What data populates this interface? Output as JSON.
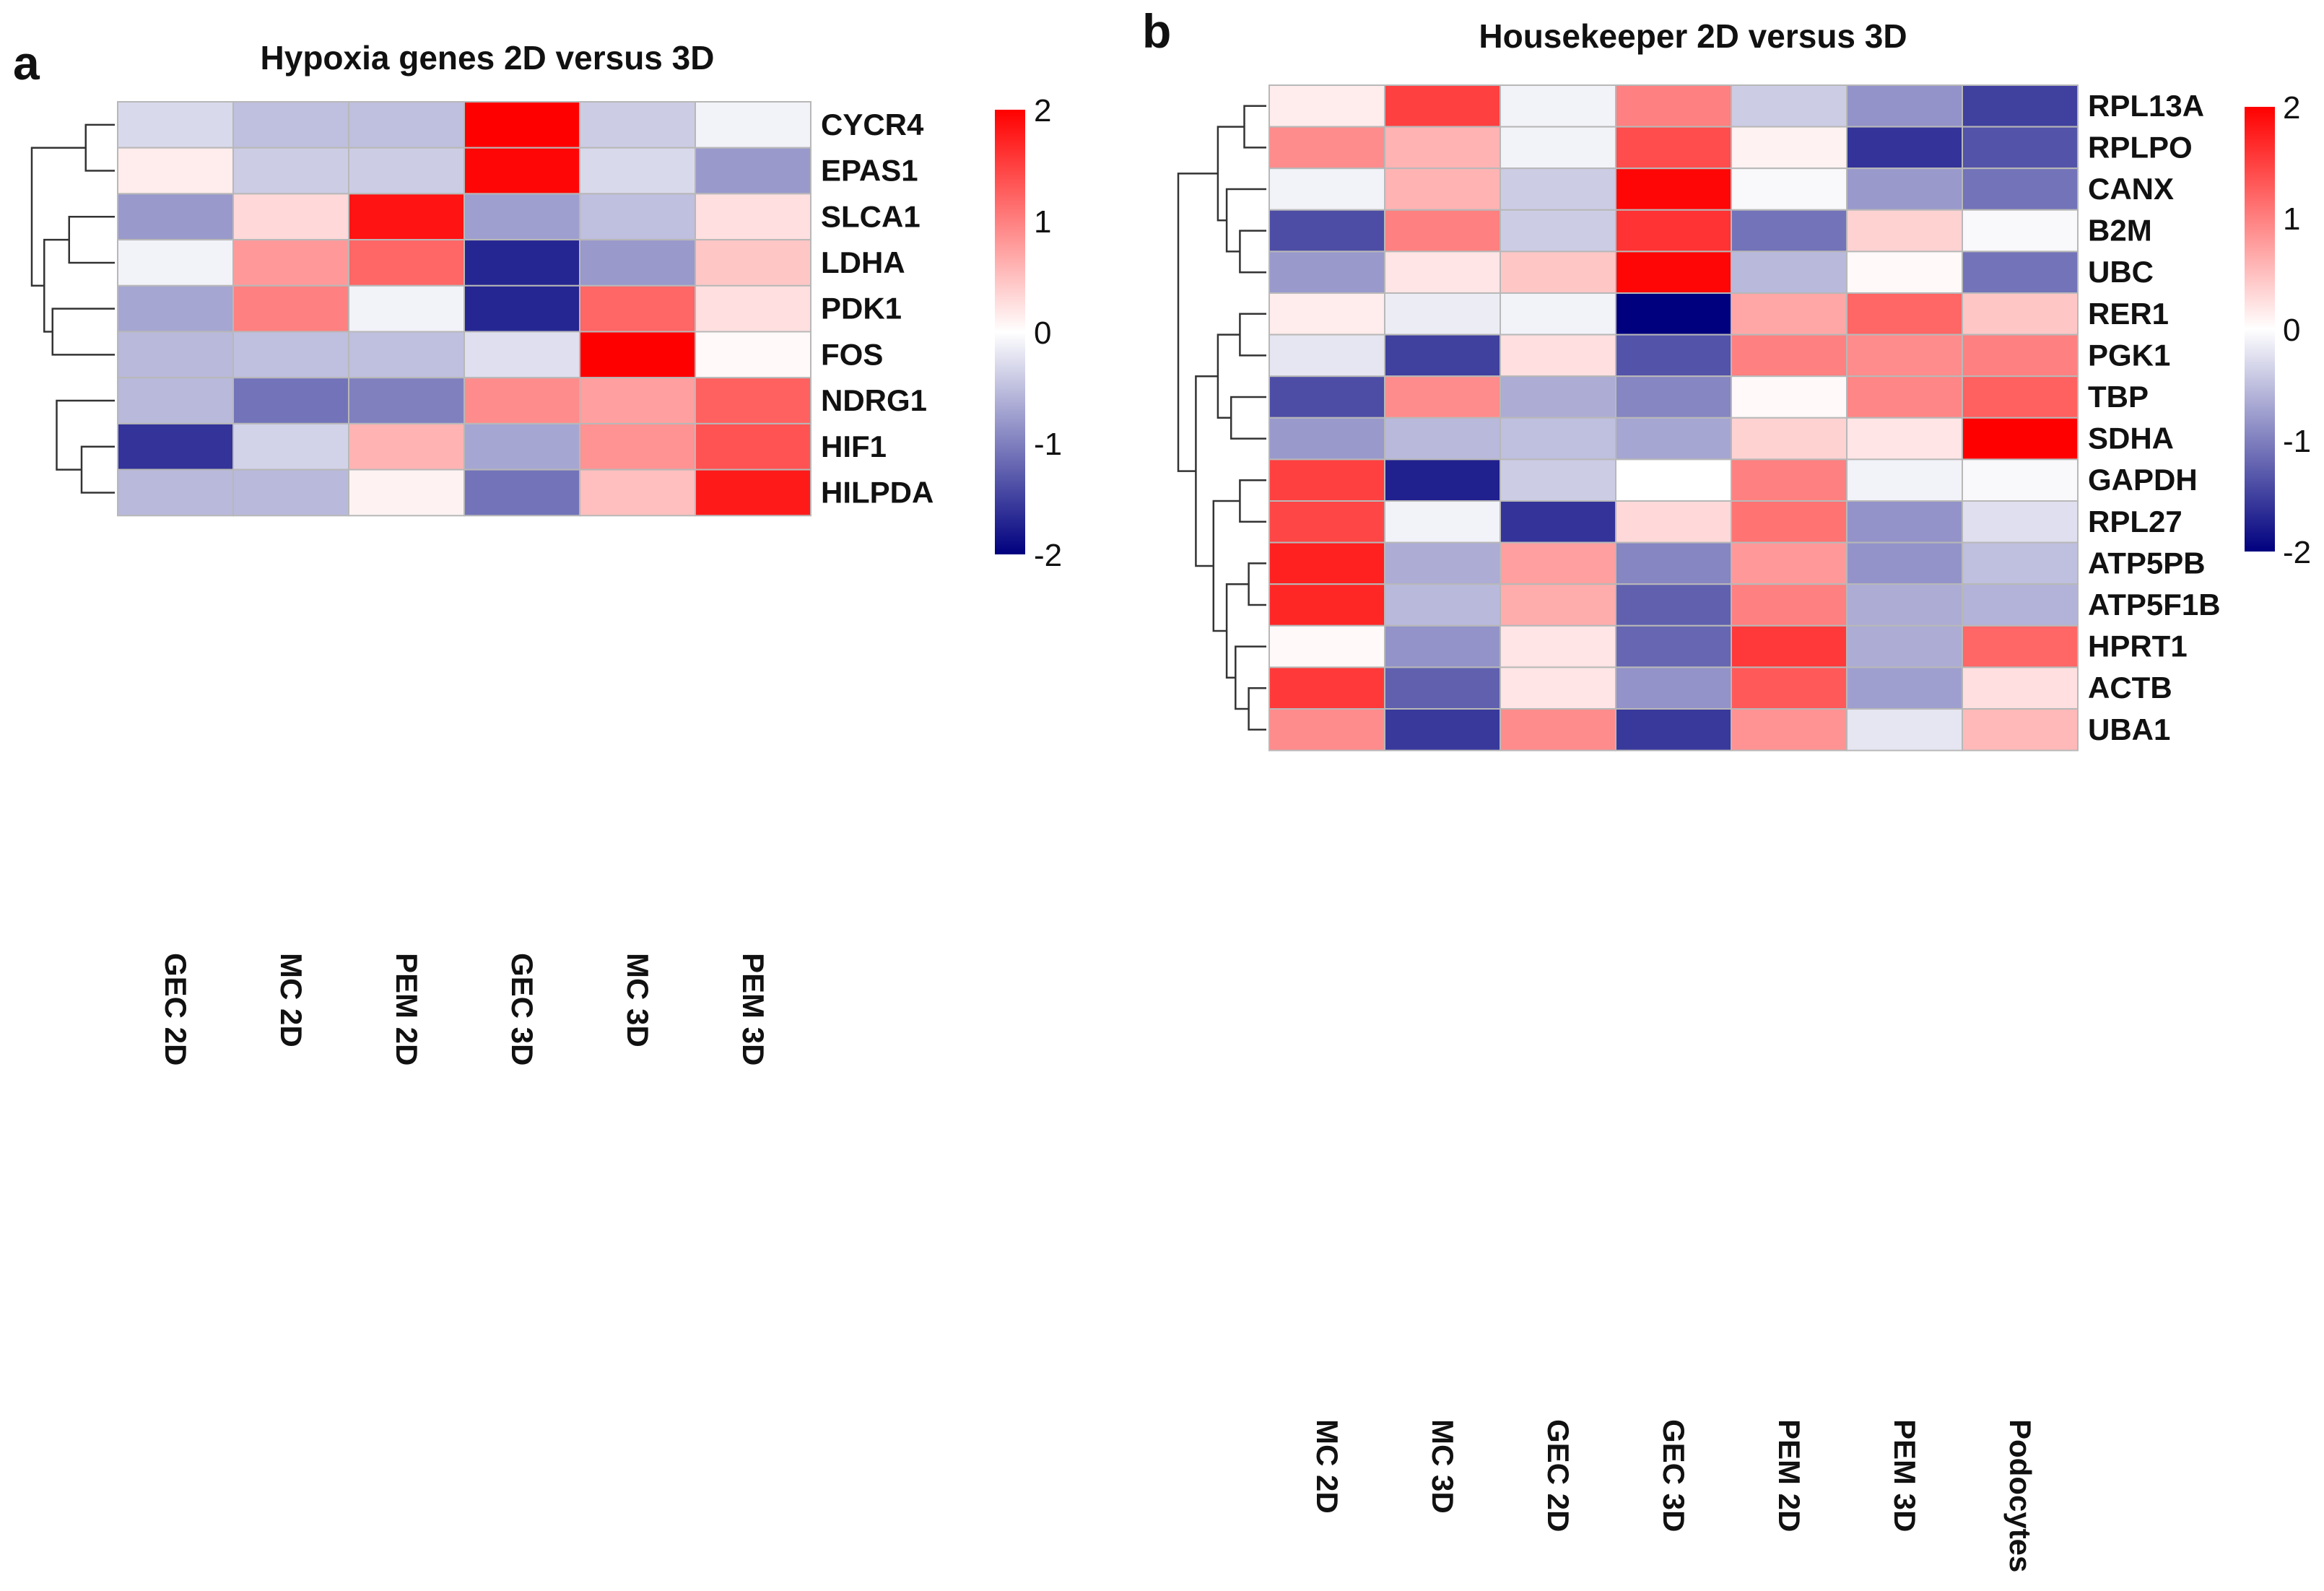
{
  "colors": {
    "low": "#00007f",
    "mid": "#ffffff",
    "high": "#ff0000"
  },
  "chart_data": [
    {
      "type": "heatmap",
      "panel": "a",
      "title": "Hypoxia genes 2D versus 3D",
      "columns": [
        "GEC 2D",
        "MC 2D",
        "PEM 2D",
        "GEC 3D",
        "MC 3D",
        "PEM 3D"
      ],
      "rows": [
        "CYCR4",
        "EPAS1",
        "SLCA1",
        "LDHA",
        "PDK1",
        "FOS",
        "NDRG1",
        "HIF1",
        "HILPDA"
      ],
      "values": [
        [
          -0.3,
          -0.5,
          -0.5,
          2.0,
          -0.4,
          -0.1
        ],
        [
          0.15,
          -0.4,
          -0.4,
          1.95,
          -0.3,
          -0.8
        ],
        [
          -0.8,
          0.3,
          1.85,
          -0.75,
          -0.5,
          0.25
        ],
        [
          -0.1,
          0.8,
          1.2,
          -1.7,
          -0.8,
          0.45
        ],
        [
          -0.7,
          1.0,
          -0.1,
          -1.7,
          1.2,
          0.25
        ],
        [
          -0.55,
          -0.5,
          -0.5,
          -0.25,
          2.0,
          0.05
        ],
        [
          -0.55,
          -1.1,
          -1.0,
          0.9,
          0.75,
          1.25
        ],
        [
          -1.6,
          -0.35,
          0.6,
          -0.7,
          0.85,
          1.35
        ],
        [
          -0.55,
          -0.55,
          0.1,
          -1.1,
          0.5,
          1.8
        ]
      ],
      "legend": {
        "min": -2,
        "max": 2,
        "ticks": [
          "2",
          "1",
          "0",
          "-1",
          "-2"
        ]
      }
    },
    {
      "type": "heatmap",
      "panel": "b",
      "title": "Housekeeper 2D versus 3D",
      "columns": [
        "MC 2D",
        "MC 3D",
        "GEC 2D",
        "GEC 3D",
        "PEM 2D",
        "PEM 3D",
        "Podocytes"
      ],
      "rows": [
        "RPL13A",
        "RPLPO",
        "CANX",
        "B2M",
        "UBC",
        "RER1",
        "PGK1",
        "TBP",
        "SDHA",
        "GAPDH",
        "RPL27",
        "ATP5PB",
        "ATP5F1B",
        "HPRT1",
        "ACTB",
        "UBA1"
      ],
      "values": [
        [
          0.15,
          1.5,
          -0.1,
          1.0,
          -0.4,
          -0.85,
          -1.5
        ],
        [
          0.9,
          0.6,
          -0.1,
          1.4,
          0.1,
          -1.6,
          -1.35
        ],
        [
          -0.1,
          0.6,
          -0.4,
          1.95,
          -0.05,
          -0.8,
          -1.1
        ],
        [
          -1.4,
          1.0,
          -0.4,
          1.6,
          -1.1,
          0.35,
          -0.05
        ],
        [
          -0.8,
          0.2,
          0.45,
          1.95,
          -0.55,
          0.05,
          -1.1
        ],
        [
          0.15,
          -0.15,
          -0.1,
          -2.0,
          0.7,
          1.2,
          0.45
        ],
        [
          -0.2,
          -1.5,
          0.25,
          -1.35,
          1.0,
          0.9,
          1.0
        ],
        [
          -1.4,
          0.9,
          -0.65,
          -0.95,
          0.05,
          0.95,
          1.25
        ],
        [
          -0.8,
          -0.55,
          -0.5,
          -0.7,
          0.35,
          0.2,
          2.0
        ],
        [
          1.5,
          -1.75,
          -0.4,
          0.0,
          1.0,
          -0.1,
          -0.05
        ],
        [
          1.45,
          -0.1,
          -1.6,
          0.3,
          1.1,
          -0.85,
          -0.25
        ],
        [
          1.75,
          -0.65,
          0.75,
          -0.95,
          0.8,
          -0.85,
          -0.5
        ],
        [
          1.7,
          -0.55,
          0.65,
          -1.25,
          1.0,
          -0.65,
          -0.6
        ],
        [
          0.05,
          -0.85,
          0.2,
          -1.2,
          1.55,
          -0.65,
          1.2
        ],
        [
          1.55,
          -1.25,
          0.2,
          -0.85,
          1.3,
          -0.75,
          0.25
        ],
        [
          0.9,
          -1.55,
          0.9,
          -1.55,
          0.85,
          -0.2,
          0.55
        ]
      ],
      "legend": {
        "min": -2,
        "max": 2,
        "ticks": [
          "2",
          "1",
          "0",
          "-1",
          "-2"
        ]
      }
    }
  ]
}
